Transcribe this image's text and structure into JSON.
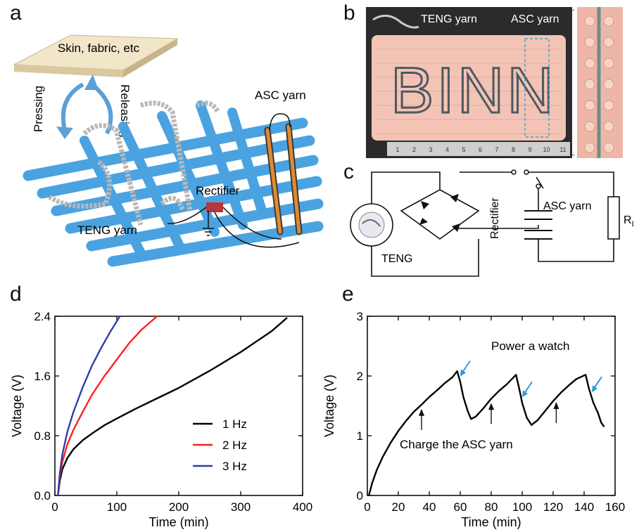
{
  "panels": {
    "a": {
      "letter": "a",
      "skin_label": "Skin, fabric, etc",
      "pressing_label": "Pressing",
      "releasing_label": "Releasing",
      "asc_label": "ASC yarn",
      "rectifier_label": "Rectifier",
      "teng_label": "TENG yarn"
    },
    "b": {
      "letter": "b",
      "teng_label": "TENG yarn",
      "asc_label": "ASC yarn",
      "stitched_text": "BINN",
      "ruler_ticks": [
        "1",
        "2",
        "3",
        "4",
        "5",
        "6",
        "7",
        "8",
        "9",
        "10",
        "11"
      ]
    },
    "c": {
      "letter": "c",
      "teng_label": "TENG",
      "rectifier_label": "Rectifier",
      "asc_label": "ASC yarn",
      "load_label": "R",
      "load_sub": "L"
    },
    "d": {
      "letter": "d"
    },
    "e": {
      "letter": "e"
    }
  },
  "chart_data": [
    {
      "panel": "d",
      "type": "line",
      "xlabel": "Time (min)",
      "ylabel": "Voltage (V)",
      "xlim": [
        0,
        400
      ],
      "ylim": [
        0,
        2.4
      ],
      "xticks": [
        0,
        100,
        200,
        300,
        400
      ],
      "yticks": [
        0.0,
        0.8,
        1.6,
        2.4
      ],
      "ytick_labels": [
        "0.0",
        "0.8",
        "1.6",
        "2.4"
      ],
      "legend_position": "center-right",
      "series": [
        {
          "name": "1 Hz",
          "color": "#000000",
          "x": [
            5,
            8,
            12,
            20,
            30,
            45,
            60,
            80,
            100,
            130,
            160,
            200,
            250,
            300,
            350,
            375
          ],
          "y": [
            0.0,
            0.2,
            0.35,
            0.5,
            0.62,
            0.74,
            0.83,
            0.94,
            1.03,
            1.16,
            1.28,
            1.44,
            1.67,
            1.92,
            2.2,
            2.38
          ]
        },
        {
          "name": "2 Hz",
          "color": "#ff1f1f",
          "x": [
            5,
            8,
            12,
            20,
            30,
            45,
            60,
            80,
            100,
            120,
            140,
            165
          ],
          "y": [
            0.0,
            0.25,
            0.45,
            0.68,
            0.88,
            1.12,
            1.35,
            1.6,
            1.82,
            2.04,
            2.22,
            2.4
          ]
        },
        {
          "name": "3 Hz",
          "color": "#2e3fa3",
          "x": [
            5,
            8,
            12,
            20,
            30,
            45,
            60,
            75,
            90,
            105
          ],
          "y": [
            0.0,
            0.3,
            0.55,
            0.85,
            1.12,
            1.45,
            1.74,
            1.98,
            2.2,
            2.4
          ]
        }
      ]
    },
    {
      "panel": "e",
      "type": "line",
      "xlabel": "Time (min)",
      "ylabel": "Voltage (V)",
      "xlim": [
        0,
        160
      ],
      "ylim": [
        0,
        3
      ],
      "xticks": [
        0,
        20,
        40,
        60,
        80,
        100,
        120,
        140,
        160
      ],
      "yticks": [
        0,
        1,
        2,
        3
      ],
      "ytick_labels": [
        "0",
        "1",
        "2",
        "3"
      ],
      "series": [
        {
          "color": "#000000",
          "x": [
            1,
            3,
            6,
            10,
            15,
            20,
            25,
            30,
            35,
            40,
            45,
            50,
            55,
            58,
            60,
            62,
            65,
            67,
            70,
            75,
            80,
            85,
            90,
            96,
            98,
            100,
            103,
            106,
            110,
            115,
            120,
            125,
            130,
            135,
            141,
            143,
            146,
            149,
            151,
            153
          ],
          "y": [
            0.0,
            0.2,
            0.42,
            0.65,
            0.88,
            1.08,
            1.25,
            1.4,
            1.52,
            1.65,
            1.76,
            1.88,
            1.98,
            2.08,
            1.9,
            1.65,
            1.4,
            1.28,
            1.32,
            1.46,
            1.62,
            1.75,
            1.86,
            2.02,
            1.8,
            1.55,
            1.3,
            1.18,
            1.26,
            1.42,
            1.58,
            1.72,
            1.84,
            1.95,
            2.02,
            1.8,
            1.55,
            1.38,
            1.22,
            1.15
          ]
        }
      ],
      "annotations": {
        "power_label": "Power a watch",
        "charge_label": "Charge the ASC yarn",
        "power_arrow_x": [
          60,
          100,
          145
        ],
        "charge_arrow_x": [
          35,
          80,
          122
        ]
      }
    }
  ]
}
